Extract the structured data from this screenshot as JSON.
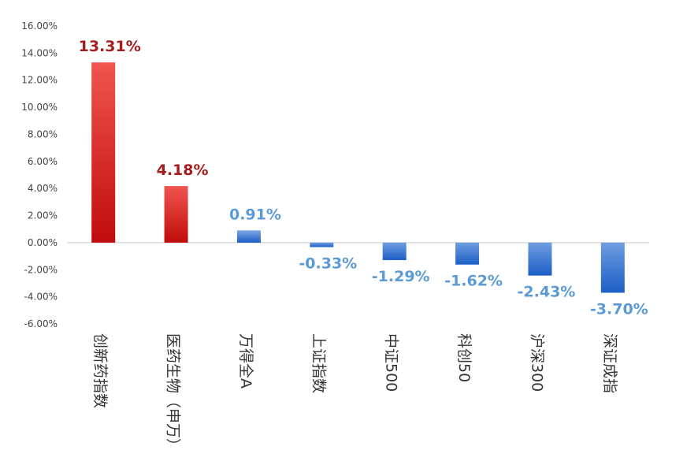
{
  "chart_data": {
    "type": "bar",
    "categories": [
      "创新药指数",
      "医药生物（申万）",
      "万得全A",
      "上证指数",
      "中证500",
      "科创50",
      "沪深300",
      "深证成指"
    ],
    "values": [
      13.31,
      4.18,
      0.91,
      -0.33,
      -1.29,
      -1.62,
      -2.43,
      -3.7
    ],
    "data_labels": [
      "13.31%",
      "4.18%",
      "0.91%",
      "-0.33%",
      "-1.29%",
      "-1.62%",
      "-2.43%",
      "-3.70%"
    ],
    "yticks": [
      "16.00%",
      "14.00%",
      "12.00%",
      "10.00%",
      "8.00%",
      "6.00%",
      "4.00%",
      "2.00%",
      "0.00%",
      "-2.00%",
      "-4.00%",
      "-6.00%"
    ],
    "ylim": [
      -6,
      16
    ],
    "title": "",
    "xlabel": "",
    "ylabel": "",
    "grid": false,
    "legend": "none",
    "colors": {
      "positive_high": "#e53935",
      "positive_high_dark": "#b71c1c",
      "label_positive_high": "#a61b1b",
      "positive_low": "#1e63c8",
      "negative": "#1e63c8",
      "label_blue": "#5b9bd5",
      "baseline": "#d9d9d9"
    }
  }
}
